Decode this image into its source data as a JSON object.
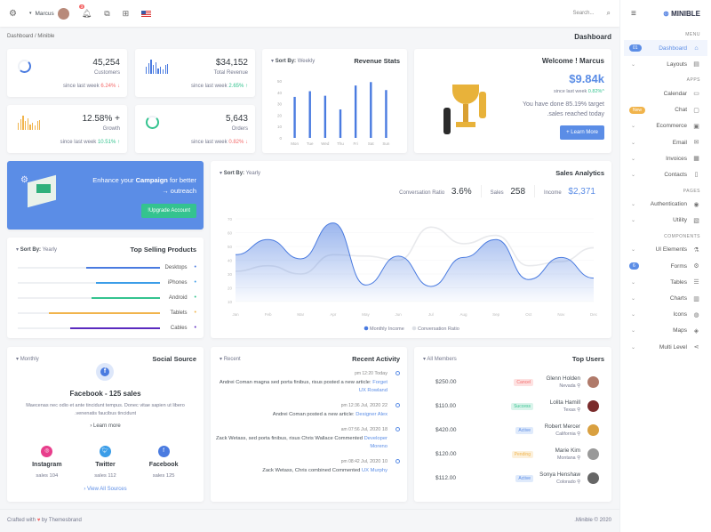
{
  "topbar": {
    "user": "Marcus",
    "notifications": "3",
    "search_placeholder": "Search..."
  },
  "brand": "MINIBLE",
  "breadcrumb": {
    "root": "Dashboard",
    "current": "Minible"
  },
  "page_title": "Dashboard",
  "stats": [
    {
      "value": "45,254",
      "label": "Customers",
      "since": "since last week",
      "change": "6.24%",
      "dir": "down"
    },
    {
      "value": "$34,152",
      "label": "Total Revenue",
      "since": "since last week",
      "change": "2.65%",
      "dir": "up"
    },
    {
      "value": "12.58% +",
      "label": "Growth",
      "since": "since last week",
      "change": "10.51%",
      "dir": "up"
    },
    {
      "value": "5,643",
      "label": "Orders",
      "since": "since last week",
      "change": "0.82%",
      "dir": "down"
    }
  ],
  "revenue": {
    "title": "Revenue Stats",
    "sort_label": "Sort By:",
    "sort_value": "Weekly"
  },
  "welcome": {
    "title": "Welcome ! Marcus",
    "amount": "$9.84k",
    "since": "since last week",
    "change": "0.82%",
    "text1": "You have done 85.19% target",
    "text2": ".sales reached today",
    "button": "+ Learn More"
  },
  "campaign": {
    "pre": "Enhance your",
    "bold": "Campaign",
    "post": "for better",
    "line2": "→ outreach",
    "button": "!Upgrade Account"
  },
  "top_selling": {
    "title": "Top Selling Products",
    "sort_label": "Sort By:",
    "sort_value": "Yearly",
    "items": [
      {
        "name": "Desktops",
        "share": 0.52,
        "color": "#4a7be0"
      },
      {
        "name": "iPhones",
        "share": 0.45,
        "color": "#3b9de8"
      },
      {
        "name": "Android",
        "share": 0.48,
        "color": "#34c38f"
      },
      {
        "name": "Tablets",
        "share": 0.78,
        "color": "#f1b44c"
      },
      {
        "name": "Cables",
        "share": 0.63,
        "color": "#5b2bbf"
      }
    ]
  },
  "sales": {
    "title": "Sales Analytics",
    "sort_label": "Sort By:",
    "sort_value": "Yearly",
    "conv_label": "Conversation Ratio",
    "conv": "3.6%",
    "sales_label": "Sales",
    "sales": "258",
    "income_label": "Income",
    "income": "$2,371"
  },
  "social": {
    "title": "Social Source",
    "filter": "Monthly",
    "headline": "Facebook - 125 sales",
    "desc1": "Maecenas nec odio et ante tincidunt tempus. Donec vitae sapien ut libero",
    "desc2": ".venenatis faucibus tincidunt",
    "learn": "Learn more",
    "view_all": "View All Sources",
    "sources": [
      {
        "name": "Instagram",
        "sales": "sales 104",
        "color": "#e83e8c",
        "icon": "instagram-icon"
      },
      {
        "name": "Twitter",
        "sales": "sales 112",
        "color": "#3b9de8",
        "icon": "twitter-icon"
      },
      {
        "name": "Facebook",
        "sales": "sales 125",
        "color": "#4a7be0",
        "icon": "facebook-icon"
      }
    ]
  },
  "activity": {
    "title": "Recent Activity",
    "filter": "Recent",
    "items": [
      {
        "time": "pm 12:20",
        "date": "Today",
        "text": "Andrei Coman magna sed porta finibus, risus posted a new article:",
        "link": "Forget UX Rowland"
      },
      {
        "time": "pm 12:36",
        "date": "Jul, 2020 22",
        "text": "Andrei Coman posted a new article:",
        "link": "Designer Alex"
      },
      {
        "time": "am 07:56",
        "date": "Jul, 2020 18",
        "text": "Zack Wetass, sed porta finibus, risus Chris Wallace Commented",
        "link": "Developer Moreno"
      },
      {
        "time": "pm 08:42",
        "date": "Jul, 2020 10",
        "text": "Zack Wetass, Chris combined Commented",
        "link": "UX Murphy"
      }
    ]
  },
  "top_users": {
    "title": "Top Users",
    "filter": "All Members",
    "users": [
      {
        "name": "Glenn Holden",
        "loc": "Nevada",
        "status": "Cancel",
        "amount": "$250.00",
        "sbg": "#fde1e1",
        "sfg": "#f46a6a"
      },
      {
        "name": "Lolita Hamill",
        "loc": "Texas",
        "status": "Success",
        "amount": "$110.00",
        "sbg": "#daf4eb",
        "sfg": "#34c38f"
      },
      {
        "name": "Robert Mercer",
        "loc": "California",
        "status": "Active",
        "amount": "$420.00",
        "sbg": "#dfeafb",
        "sfg": "#5b8de6"
      },
      {
        "name": "Marie Kim",
        "loc": "Montana",
        "status": "Pending",
        "amount": "$120.00",
        "sbg": "#fcf0db",
        "sfg": "#f1b44c"
      },
      {
        "name": "Sonya Henshaw",
        "loc": "Colorado",
        "status": "Active",
        "amount": "$112.00",
        "sbg": "#dfeafb",
        "sfg": "#5b8de6"
      }
    ]
  },
  "sidebar": {
    "sections": [
      {
        "title": "MENU",
        "items": [
          {
            "label": "Dashboard",
            "badge": "01",
            "active": true,
            "icon": "home-icon"
          },
          {
            "label": "Layouts",
            "icon": "layout-icon"
          }
        ]
      },
      {
        "title": "APPS",
        "items": [
          {
            "label": "Calendar",
            "icon": "calendar-icon"
          },
          {
            "label": "Chat",
            "badge": "New",
            "icon": "chat-icon"
          },
          {
            "label": "Ecommerce",
            "icon": "store-icon"
          },
          {
            "label": "Email",
            "icon": "mail-icon"
          },
          {
            "label": "Invoices",
            "icon": "invoice-icon"
          },
          {
            "label": "Contacts",
            "icon": "contacts-icon"
          }
        ]
      },
      {
        "title": "PAGES",
        "items": [
          {
            "label": "Authentication",
            "icon": "user-circle-icon"
          },
          {
            "label": "Utility",
            "icon": "file-icon"
          }
        ]
      },
      {
        "title": "COMPONENTS",
        "items": [
          {
            "label": "UI Elements",
            "icon": "flask-icon"
          },
          {
            "label": "Forms",
            "badge": "6",
            "icon": "gear-icon"
          },
          {
            "label": "Tables",
            "icon": "list-icon"
          },
          {
            "label": "Charts",
            "icon": "chart-icon"
          },
          {
            "label": "Icons",
            "icon": "globe-icon"
          },
          {
            "label": "Maps",
            "icon": "map-pin-icon"
          },
          {
            "label": "Multi Level",
            "icon": "share-icon"
          }
        ]
      }
    ]
  },
  "footer": {
    "left_pre": "Crafted with",
    "left_post": "by Themesbrand",
    "right": ".Minible © 2020"
  },
  "chart_data": [
    {
      "type": "bar",
      "title": "Revenue Stats",
      "categories": [
        "Mon",
        "Tue",
        "Wed",
        "Thu",
        "Fri",
        "Sat",
        "Sun"
      ],
      "values": [
        36,
        41,
        37,
        25,
        46,
        49,
        42
      ],
      "yticks": [
        0,
        10,
        20,
        30,
        40,
        50
      ],
      "ylim": [
        0,
        50
      ],
      "color": "#4a7be0"
    },
    {
      "type": "area",
      "title": "Sales Analytics",
      "categories": [
        "Jan",
        "Feb",
        "Mar",
        "Apr",
        "May",
        "Jun",
        "Jul",
        "Aug",
        "Sep",
        "Oct",
        "Nov",
        "Dec"
      ],
      "yticks": [
        10,
        20,
        30,
        40,
        50,
        60,
        70
      ],
      "ylim": [
        10,
        70
      ],
      "legend": "bottom",
      "series": [
        {
          "name": "Monthly Income",
          "values": [
            44,
            55,
            41,
            67,
            22,
            43,
            21,
            42,
            55,
            26,
            42,
            27
          ],
          "color": "#4a7be0"
        },
        {
          "name": "Conversation Ratio",
          "values": [
            32,
            36,
            30,
            44,
            43,
            40,
            64,
            52,
            58,
            36,
            39,
            49
          ],
          "color": "#e8e9ec"
        }
      ]
    }
  ]
}
